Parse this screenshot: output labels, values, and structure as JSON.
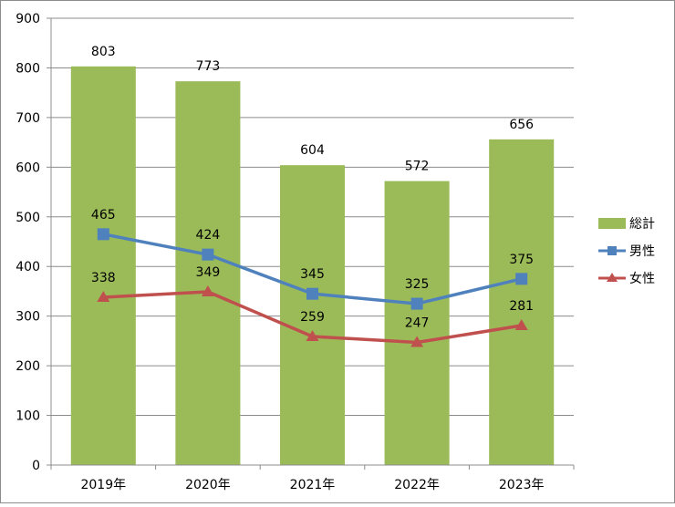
{
  "chart_data": {
    "type": "bar+line",
    "categories": [
      "2019年",
      "2020年",
      "2021年",
      "2022年",
      "2023年"
    ],
    "ylim": [
      0,
      900
    ],
    "yticks": [
      0,
      100,
      200,
      300,
      400,
      500,
      600,
      700,
      800,
      900
    ],
    "grid": true,
    "legend_position": "right",
    "series": [
      {
        "name": "総計",
        "kind": "bar",
        "color": "#9bbb59",
        "values": [
          803,
          773,
          604,
          572,
          656
        ]
      },
      {
        "name": "男性",
        "kind": "line",
        "marker": "square",
        "color": "#4f81bd",
        "values": [
          465,
          424,
          345,
          325,
          375
        ]
      },
      {
        "name": "女性",
        "kind": "line",
        "marker": "triangle",
        "color": "#c0504d",
        "values": [
          338,
          349,
          259,
          247,
          281
        ]
      }
    ]
  }
}
